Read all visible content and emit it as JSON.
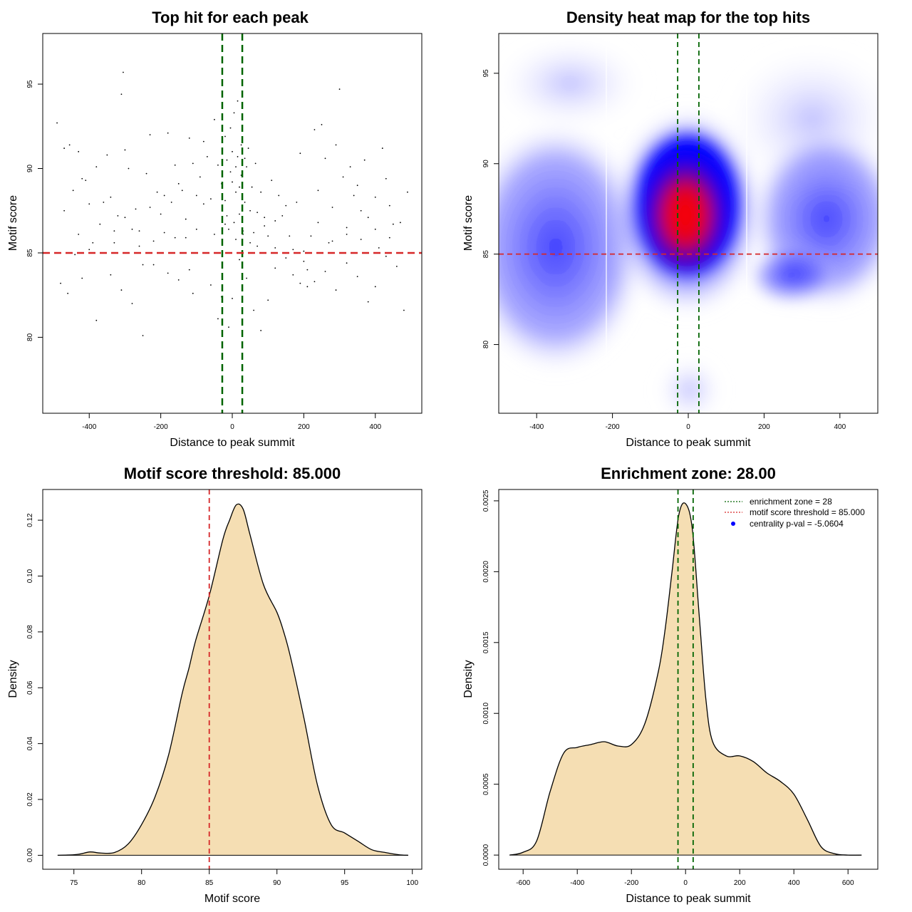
{
  "chart_data": [
    {
      "type": "scatter",
      "title": "Top hit for each peak",
      "xlabel": "Distance to peak summit",
      "ylabel": "Motif score",
      "xlim": [
        -530,
        530
      ],
      "ylim": [
        75.5,
        98
      ],
      "xticks": [
        -400,
        -200,
        0,
        200,
        400
      ],
      "yticks": [
        80,
        85,
        90,
        95
      ],
      "vlines": [
        -28,
        28
      ],
      "hline": 85,
      "line_colors": {
        "vline": "#006400",
        "hline": "#d62728"
      },
      "point_color": "#000000",
      "points": [
        [
          -490,
          92.7
        ],
        [
          -470,
          91.2
        ],
        [
          -455,
          91.4
        ],
        [
          -445,
          88.7
        ],
        [
          -430,
          91.0
        ],
        [
          -420,
          89.4
        ],
        [
          -410,
          89.3
        ],
        [
          -400,
          85.2
        ],
        [
          -390,
          85.6
        ],
        [
          -380,
          90.1
        ],
        [
          -360,
          88.0
        ],
        [
          -350,
          90.8
        ],
        [
          -340,
          88.3
        ],
        [
          -330,
          86.3
        ],
        [
          -320,
          87.2
        ],
        [
          -310,
          94.4
        ],
        [
          -305,
          95.7
        ],
        [
          -300,
          91.1
        ],
        [
          -290,
          90.0
        ],
        [
          -280,
          86.4
        ],
        [
          -270,
          87.6
        ],
        [
          -260,
          86.3
        ],
        [
          -250,
          84.3
        ],
        [
          -240,
          89.7
        ],
        [
          -230,
          92.0
        ],
        [
          -220,
          85.7
        ],
        [
          -210,
          88.6
        ],
        [
          -200,
          87.3
        ],
        [
          -190,
          88.4
        ],
        [
          -180,
          92.1
        ],
        [
          -170,
          88.0
        ],
        [
          -160,
          90.2
        ],
        [
          -150,
          89.1
        ],
        [
          -140,
          88.7
        ],
        [
          -130,
          85.9
        ],
        [
          -120,
          91.8
        ],
        [
          -110,
          90.3
        ],
        [
          -100,
          88.4
        ],
        [
          -90,
          89.5
        ],
        [
          -80,
          91.6
        ],
        [
          -70,
          90.7
        ],
        [
          -60,
          88.2
        ],
        [
          -50,
          92.9
        ],
        [
          -40,
          90.2
        ],
        [
          -30,
          89.1
        ],
        [
          -20,
          88.1
        ],
        [
          -15,
          87.2
        ],
        [
          -10,
          86.4
        ],
        [
          -5,
          89.8
        ],
        [
          0,
          91.0
        ],
        [
          5,
          86.8
        ],
        [
          10,
          88.6
        ],
        [
          15,
          90.7
        ],
        [
          20,
          87.3
        ],
        [
          25,
          89.6
        ],
        [
          30,
          86.1
        ],
        [
          35,
          88.0
        ],
        [
          40,
          90.1
        ],
        [
          45,
          91.2
        ],
        [
          50,
          87.5
        ],
        [
          55,
          88.9
        ],
        [
          60,
          86.2
        ],
        [
          65,
          90.3
        ],
        [
          70,
          85.4
        ],
        [
          80,
          88.6
        ],
        [
          90,
          87.1
        ],
        [
          100,
          86.0
        ],
        [
          110,
          89.3
        ],
        [
          120,
          86.9
        ],
        [
          130,
          88.4
        ],
        [
          150,
          87.8
        ],
        [
          170,
          85.2
        ],
        [
          180,
          88.0
        ],
        [
          190,
          90.9
        ],
        [
          200,
          84.5
        ],
        [
          210,
          83.0
        ],
        [
          220,
          86.0
        ],
        [
          230,
          92.3
        ],
        [
          240,
          88.7
        ],
        [
          250,
          92.6
        ],
        [
          260,
          90.6
        ],
        [
          270,
          85.6
        ],
        [
          280,
          87.7
        ],
        [
          290,
          91.4
        ],
        [
          300,
          94.7
        ],
        [
          310,
          89.5
        ],
        [
          320,
          86.5
        ],
        [
          330,
          90.1
        ],
        [
          340,
          88.4
        ],
        [
          350,
          89.0
        ],
        [
          360,
          85.8
        ],
        [
          370,
          90.5
        ],
        [
          380,
          87.1
        ],
        [
          400,
          88.3
        ],
        [
          410,
          85.3
        ],
        [
          420,
          91.2
        ],
        [
          430,
          89.4
        ],
        [
          440,
          87.8
        ],
        [
          450,
          86.7
        ],
        [
          460,
          84.2
        ],
        [
          470,
          86.8
        ],
        [
          480,
          81.6
        ],
        [
          490,
          88.6
        ],
        [
          -480,
          83.2
        ],
        [
          -460,
          82.6
        ],
        [
          -440,
          84.9
        ],
        [
          -420,
          83.5
        ],
        [
          -380,
          81.0
        ],
        [
          -340,
          83.7
        ],
        [
          -310,
          82.8
        ],
        [
          -280,
          82.0
        ],
        [
          -250,
          80.1
        ],
        [
          -220,
          84.3
        ],
        [
          -180,
          83.8
        ],
        [
          -150,
          83.4
        ],
        [
          -120,
          84.0
        ],
        [
          -110,
          82.6
        ],
        [
          -60,
          83.1
        ],
        [
          -40,
          81.1
        ],
        [
          -30,
          82.4
        ],
        [
          -10,
          80.6
        ],
        [
          0,
          82.3
        ],
        [
          20,
          84.6
        ],
        [
          40,
          83.5
        ],
        [
          60,
          81.6
        ],
        [
          80,
          80.4
        ],
        [
          100,
          82.2
        ],
        [
          120,
          84.1
        ],
        [
          150,
          84.7
        ],
        [
          170,
          83.7
        ],
        [
          190,
          83.2
        ],
        [
          210,
          84.0
        ],
        [
          230,
          83.3
        ],
        [
          260,
          83.9
        ],
        [
          290,
          82.8
        ],
        [
          320,
          84.4
        ],
        [
          350,
          83.6
        ],
        [
          380,
          82.1
        ],
        [
          400,
          83.0
        ],
        [
          430,
          84.8
        ],
        [
          -470,
          87.5
        ],
        [
          -430,
          86.1
        ],
        [
          -400,
          87.9
        ],
        [
          -370,
          86.7
        ],
        [
          -330,
          85.6
        ],
        [
          -300,
          87.1
        ],
        [
          -260,
          85.4
        ],
        [
          -230,
          87.7
        ],
        [
          -190,
          86.2
        ],
        [
          -160,
          85.9
        ],
        [
          -130,
          87.0
        ],
        [
          -100,
          86.4
        ],
        [
          -80,
          87.9
        ],
        [
          -50,
          86.1
        ],
        [
          -20,
          86.7
        ],
        [
          10,
          85.8
        ],
        [
          30,
          86.3
        ],
        [
          50,
          85.6
        ],
        [
          70,
          87.4
        ],
        [
          90,
          86.6
        ],
        [
          120,
          85.3
        ],
        [
          140,
          87.2
        ],
        [
          160,
          86.0
        ],
        [
          200,
          85.1
        ],
        [
          240,
          86.8
        ],
        [
          280,
          85.7
        ],
        [
          320,
          86.1
        ],
        [
          360,
          87.5
        ],
        [
          400,
          86.4
        ],
        [
          440,
          85.9
        ],
        [
          -20,
          91.9
        ],
        [
          -5,
          92.4
        ],
        [
          5,
          93.3
        ],
        [
          15,
          94.0
        ],
        [
          25,
          91.4
        ],
        [
          35,
          90.6
        ],
        [
          10,
          90.1
        ],
        [
          -15,
          90.5
        ],
        [
          0,
          89.2
        ],
        [
          20,
          88.9
        ]
      ]
    },
    {
      "type": "heatmap",
      "title": "Density heat map for the top hits",
      "xlabel": "Distance to peak summit",
      "ylabel": "Motif score",
      "xlim": [
        -500,
        500
      ],
      "ylim": [
        76.2,
        97.2
      ],
      "xticks": [
        -400,
        -200,
        0,
        200,
        400
      ],
      "yticks": [
        80,
        85,
        90,
        95
      ],
      "vlines": [
        -28,
        28
      ],
      "hline": 85,
      "palette": [
        "#ffffff",
        "#0000ff",
        "#ff0000"
      ],
      "line_colors": {
        "vline": "#006400",
        "hline": "#d62728"
      }
    },
    {
      "type": "area",
      "title": "Motif score threshold: 85.000",
      "xlabel": "Motif score",
      "ylabel": "Density",
      "xlim": [
        72.7,
        100.7
      ],
      "ylim": [
        -0.005,
        0.131
      ],
      "xticks": [
        75,
        80,
        85,
        90,
        95,
        100
      ],
      "yticks": [
        0,
        0.02,
        0.04,
        0.06,
        0.08,
        0.1,
        0.12
      ],
      "ytick_labels": [
        "0.00",
        "0.02",
        "0.04",
        "0.06",
        "0.08",
        "0.10",
        "0.12"
      ],
      "vline": 85,
      "fill": "#f5deb3",
      "line_color": "#d62728",
      "x": [
        73.8,
        75,
        75.5,
        76.2,
        77,
        78,
        79,
        80,
        81,
        82,
        83,
        83.5,
        84,
        85,
        86,
        86.5,
        87,
        87.5,
        88,
        89,
        90,
        90.5,
        91,
        92,
        93,
        94,
        95,
        96,
        97,
        98,
        99,
        99.7
      ],
      "values": [
        0,
        0.0002,
        0.0005,
        0.0012,
        0.0008,
        0.001,
        0.004,
        0.011,
        0.021,
        0.036,
        0.058,
        0.067,
        0.077,
        0.093,
        0.113,
        0.12,
        0.1255,
        0.124,
        0.115,
        0.097,
        0.087,
        0.08,
        0.071,
        0.049,
        0.025,
        0.011,
        0.008,
        0.005,
        0.002,
        0.001,
        0.0002,
        0
      ]
    },
    {
      "type": "area",
      "title": "Enrichment zone: 28.00",
      "xlabel": "Distance to peak summit",
      "ylabel": "Density",
      "xlim": [
        -690,
        710
      ],
      "ylim": [
        -0.0001,
        0.00258
      ],
      "xticks": [
        -600,
        -400,
        -200,
        0,
        200,
        400,
        600
      ],
      "yticks": [
        0,
        0.0005,
        0.001,
        0.0015,
        0.002,
        0.0025
      ],
      "ytick_labels": [
        "0.0000",
        "0.0005",
        "0.0010",
        "0.0015",
        "0.0020",
        "0.0025"
      ],
      "vlines": [
        -28,
        28
      ],
      "fill": "#f5deb3",
      "line_colors": {
        "vline": "#006400"
      },
      "x": [
        -650,
        -600,
        -550,
        -500,
        -450,
        -400,
        -350,
        -300,
        -250,
        -200,
        -150,
        -100,
        -75,
        -50,
        -25,
        0,
        25,
        50,
        75,
        100,
        150,
        200,
        250,
        300,
        350,
        400,
        450,
        500,
        550,
        600,
        650
      ],
      "values": [
        0,
        2e-05,
        0.0001,
        0.00045,
        0.00072,
        0.00076,
        0.00078,
        0.0008,
        0.00077,
        0.00078,
        0.00093,
        0.0013,
        0.0016,
        0.002,
        0.0024,
        0.00248,
        0.0023,
        0.0017,
        0.0011,
        0.0008,
        0.0007,
        0.0007,
        0.00066,
        0.00058,
        0.00052,
        0.00043,
        0.00025,
        6e-05,
        1e-05,
        0,
        0
      ],
      "legend": [
        {
          "label": "enrichment zone = 28",
          "color": "#006400",
          "style": "line"
        },
        {
          "label": "motif score threshold = 85.000",
          "color": "#d62728",
          "style": "line"
        },
        {
          "label": "centrality p-val = -5.0604",
          "color": "#0000ff",
          "style": "point"
        }
      ]
    }
  ]
}
